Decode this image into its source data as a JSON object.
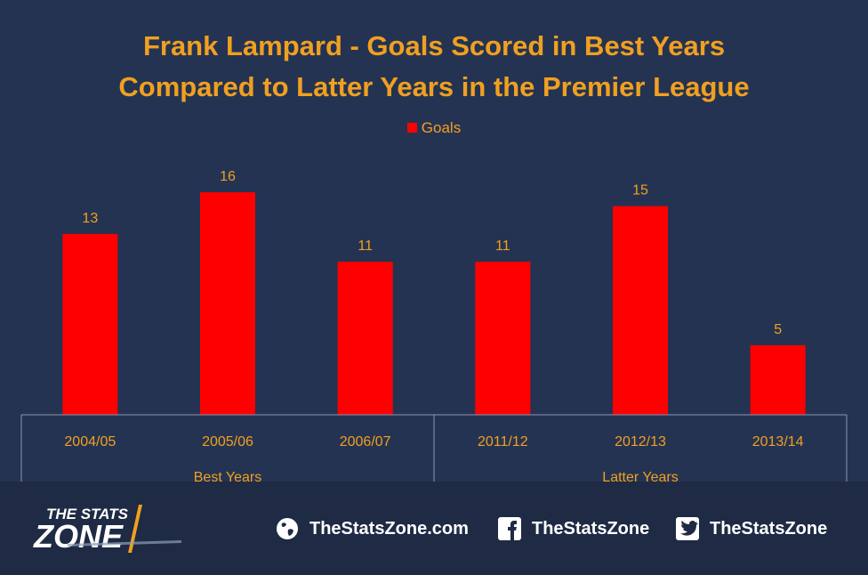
{
  "chart_data": {
    "type": "bar",
    "title": "Frank Lampard - Goals Scored in Best Years",
    "title_line2": "Compared to Latter Years in the Premier League",
    "legend_position": "top",
    "series": [
      {
        "name": "Goals",
        "color": "#ff0000",
        "values": [
          13,
          16,
          11,
          11,
          15,
          5
        ]
      }
    ],
    "categories": [
      "2004/05",
      "2005/06",
      "2006/07",
      "2011/12",
      "2012/13",
      "2013/14"
    ],
    "groups": [
      {
        "label": "Best Years",
        "categories": [
          "2004/05",
          "2005/06",
          "2006/07"
        ]
      },
      {
        "label": "Latter Years",
        "categories": [
          "2011/12",
          "2012/13",
          "2013/14"
        ]
      }
    ],
    "ylim": [
      0,
      16
    ],
    "grid": false,
    "label_color": "#f0a020",
    "background": "#253352"
  },
  "footer": {
    "logo_line1": "THE STATS",
    "logo_line2": "ZONE",
    "website": "TheStatsZone.com",
    "facebook": "TheStatsZone",
    "twitter": "TheStatsZone",
    "website_icon": "globe-icon",
    "facebook_icon": "facebook-icon",
    "twitter_icon": "twitter-icon"
  }
}
